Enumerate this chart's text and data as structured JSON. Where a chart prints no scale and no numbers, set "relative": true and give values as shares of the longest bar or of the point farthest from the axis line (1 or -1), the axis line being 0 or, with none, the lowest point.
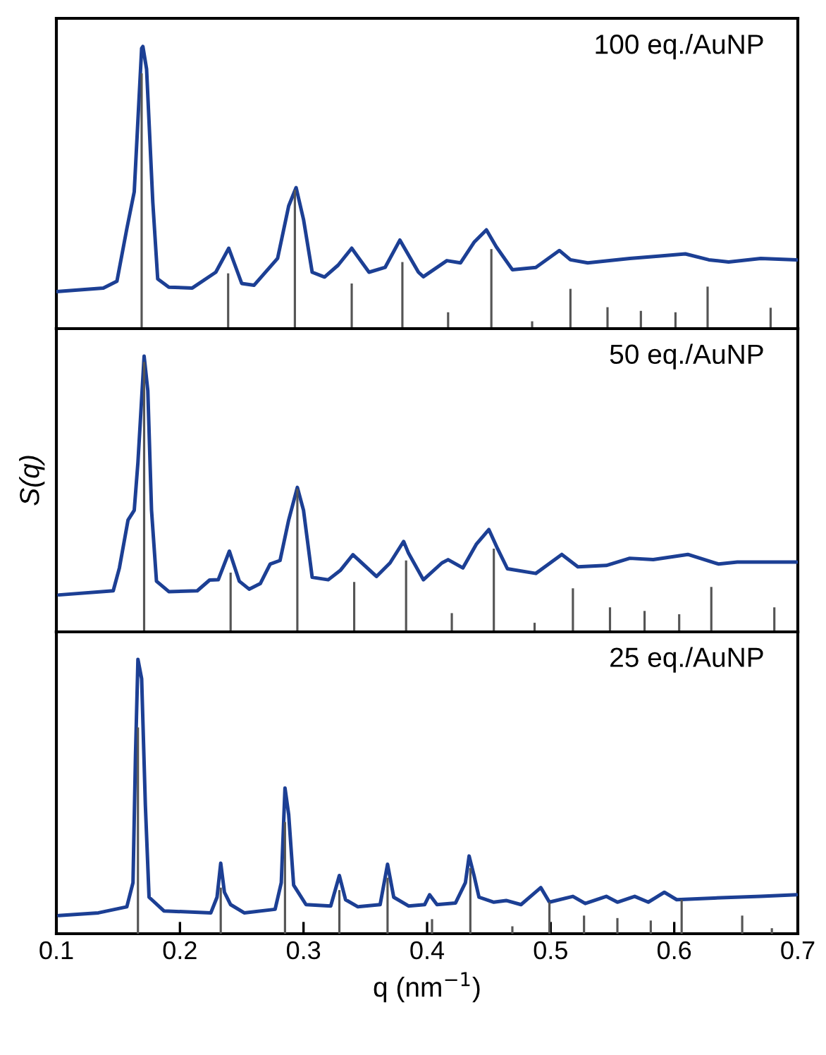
{
  "chart_data": [
    {
      "type": "line",
      "relative": true,
      "xlim": [
        0.1,
        0.7
      ],
      "tick_labels": false,
      "annotations": [
        "100 eq./AuNP"
      ],
      "series": [
        {
          "color": "#1c3f94",
          "x": [
            0.1,
            0.138,
            0.149,
            0.157,
            0.163,
            0.169,
            0.17,
            0.173,
            0.178,
            0.182,
            0.191,
            0.21,
            0.229,
            0.2395,
            0.25,
            0.26,
            0.279,
            0.288,
            0.294,
            0.3,
            0.307,
            0.317,
            0.328,
            0.339,
            0.353,
            0.366,
            0.378,
            0.393,
            0.397,
            0.416,
            0.427,
            0.438,
            0.448,
            0.456,
            0.469,
            0.488,
            0.507,
            0.516,
            0.53,
            0.564,
            0.587,
            0.609,
            0.628,
            0.644,
            0.67,
            0.699
          ],
          "values": [
            0.131,
            0.144,
            0.168,
            0.354,
            0.485,
            0.994,
            1.0,
            0.92,
            0.45,
            0.176,
            0.147,
            0.144,
            0.2,
            0.285,
            0.16,
            0.154,
            0.249,
            0.435,
            0.5,
            0.387,
            0.2,
            0.183,
            0.225,
            0.285,
            0.2,
            0.217,
            0.314,
            0.2,
            0.184,
            0.241,
            0.233,
            0.306,
            0.35,
            0.29,
            0.209,
            0.217,
            0.277,
            0.244,
            0.233,
            0.249,
            0.257,
            0.265,
            0.244,
            0.236,
            0.249,
            0.244
          ]
        },
        {
          "type": "bar",
          "color": "#555555",
          "x": [
            0.169,
            0.239,
            0.293,
            0.339,
            0.38,
            0.417,
            0.452,
            0.485,
            0.516,
            0.546,
            0.573,
            0.601,
            0.627,
            0.678
          ],
          "values": [
            0.905,
            0.196,
            0.492,
            0.16,
            0.236,
            0.058,
            0.282,
            0.026,
            0.141,
            0.076,
            0.063,
            0.058,
            0.149,
            0.074
          ]
        }
      ]
    },
    {
      "type": "line",
      "relative": true,
      "xlim": [
        0.1,
        0.7
      ],
      "tick_labels": false,
      "ylabel": "S(q)",
      "annotations": [
        "50 eq./AuNP"
      ],
      "series": [
        {
          "color": "#1c3f94",
          "x": [
            0.102,
            0.146,
            0.151,
            0.158,
            0.163,
            0.166,
            0.171,
            0.174,
            0.177,
            0.181,
            0.191,
            0.214,
            0.224,
            0.231,
            0.24,
            0.248,
            0.256,
            0.265,
            0.273,
            0.281,
            0.288,
            0.295,
            0.3,
            0.307,
            0.32,
            0.33,
            0.34,
            0.359,
            0.37,
            0.381,
            0.385,
            0.397,
            0.412,
            0.417,
            0.429,
            0.44,
            0.45,
            0.457,
            0.465,
            0.488,
            0.509,
            0.522,
            0.545,
            0.564,
            0.583,
            0.611,
            0.636,
            0.651,
            0.674,
            0.699
          ],
          "values": [
            0.134,
            0.149,
            0.232,
            0.406,
            0.441,
            0.615,
            1.0,
            0.875,
            0.441,
            0.184,
            0.146,
            0.149,
            0.188,
            0.189,
            0.293,
            0.184,
            0.155,
            0.175,
            0.246,
            0.259,
            0.406,
            0.524,
            0.441,
            0.198,
            0.189,
            0.224,
            0.28,
            0.201,
            0.25,
            0.328,
            0.285,
            0.189,
            0.25,
            0.262,
            0.232,
            0.319,
            0.371,
            0.302,
            0.229,
            0.212,
            0.281,
            0.236,
            0.241,
            0.267,
            0.262,
            0.281,
            0.246,
            0.253,
            0.253,
            0.253
          ]
        },
        {
          "type": "bar",
          "color": "#555555",
          "x": [
            0.171,
            0.241,
            0.295,
            0.341,
            0.383,
            0.42,
            0.454,
            0.487,
            0.518,
            0.548,
            0.576,
            0.604,
            0.63,
            0.681
          ],
          "values": [
            0.979,
            0.215,
            0.519,
            0.181,
            0.259,
            0.068,
            0.302,
            0.033,
            0.158,
            0.089,
            0.076,
            0.064,
            0.163,
            0.089
          ]
        }
      ]
    },
    {
      "type": "line",
      "relative": true,
      "xlim": [
        0.1,
        0.7
      ],
      "xticks": [
        0.1,
        0.2,
        0.3,
        0.4,
        0.5,
        0.6,
        0.7
      ],
      "tick_labels": "x",
      "xlabel": "q (nm$^{−1}$)",
      "annotations": [
        "25 eq./AuNP"
      ],
      "series": [
        {
          "color": "#1c3f94",
          "x": [
            0.102,
            0.134,
            0.157,
            0.162,
            0.164,
            0.166,
            0.169,
            0.172,
            0.175,
            0.187,
            0.225,
            0.23,
            0.233,
            0.236,
            0.241,
            0.252,
            0.277,
            0.282,
            0.285,
            0.288,
            0.292,
            0.302,
            0.322,
            0.329,
            0.334,
            0.344,
            0.362,
            0.368,
            0.373,
            0.385,
            0.398,
            0.402,
            0.408,
            0.423,
            0.431,
            0.434,
            0.438,
            0.442,
            0.454,
            0.464,
            0.476,
            0.492,
            0.499,
            0.518,
            0.528,
            0.545,
            0.554,
            0.568,
            0.579,
            0.592,
            0.602,
            0.632,
            0.67,
            0.699
          ],
          "values": [
            0.066,
            0.076,
            0.098,
            0.186,
            0.646,
            1.0,
            0.929,
            0.469,
            0.133,
            0.083,
            0.076,
            0.133,
            0.257,
            0.151,
            0.106,
            0.076,
            0.089,
            0.186,
            0.531,
            0.434,
            0.177,
            0.106,
            0.101,
            0.212,
            0.124,
            0.098,
            0.106,
            0.253,
            0.133,
            0.101,
            0.106,
            0.142,
            0.106,
            0.112,
            0.186,
            0.283,
            0.212,
            0.133,
            0.115,
            0.121,
            0.106,
            0.168,
            0.115,
            0.136,
            0.11,
            0.136,
            0.115,
            0.136,
            0.115,
            0.151,
            0.124,
            0.13,
            0.136,
            0.142
          ]
        },
        {
          "type": "bar",
          "color": "#555555",
          "x": [
            0.166,
            0.233,
            0.285,
            0.329,
            0.368,
            0.404,
            0.435,
            0.469,
            0.499,
            0.527,
            0.554,
            0.581,
            0.606,
            0.655,
            0.679
          ],
          "values": [
            0.752,
            0.168,
            0.407,
            0.159,
            0.204,
            0.053,
            0.239,
            0.027,
            0.115,
            0.066,
            0.057,
            0.048,
            0.124,
            0.066,
            0.02
          ]
        }
      ]
    }
  ]
}
